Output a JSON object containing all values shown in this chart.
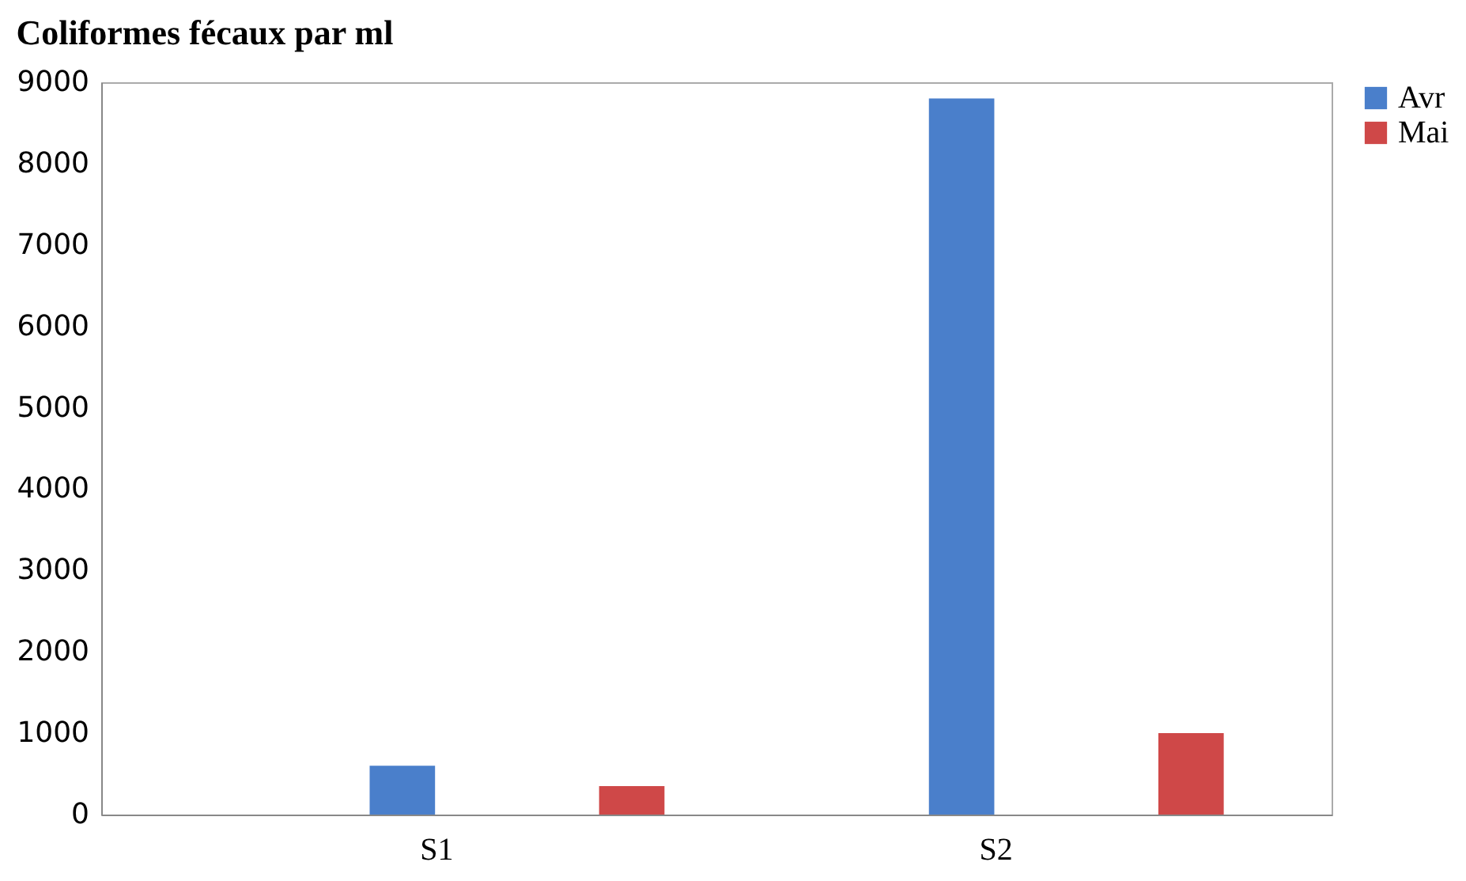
{
  "chart_data": {
    "type": "bar",
    "title": "Coliformes fécaux par ml",
    "categories": [
      "S1",
      "S2"
    ],
    "series": [
      {
        "name": "Avr",
        "color": "#4a7fcb",
        "values": [
          600,
          8800
        ]
      },
      {
        "name": "Mai",
        "color": "#cf4848",
        "values": [
          350,
          1000
        ]
      }
    ],
    "ylim": [
      0,
      9000
    ],
    "yticks": [
      0,
      1000,
      2000,
      3000,
      4000,
      5000,
      6000,
      7000,
      8000,
      9000
    ],
    "grid": false,
    "legend": "right"
  }
}
